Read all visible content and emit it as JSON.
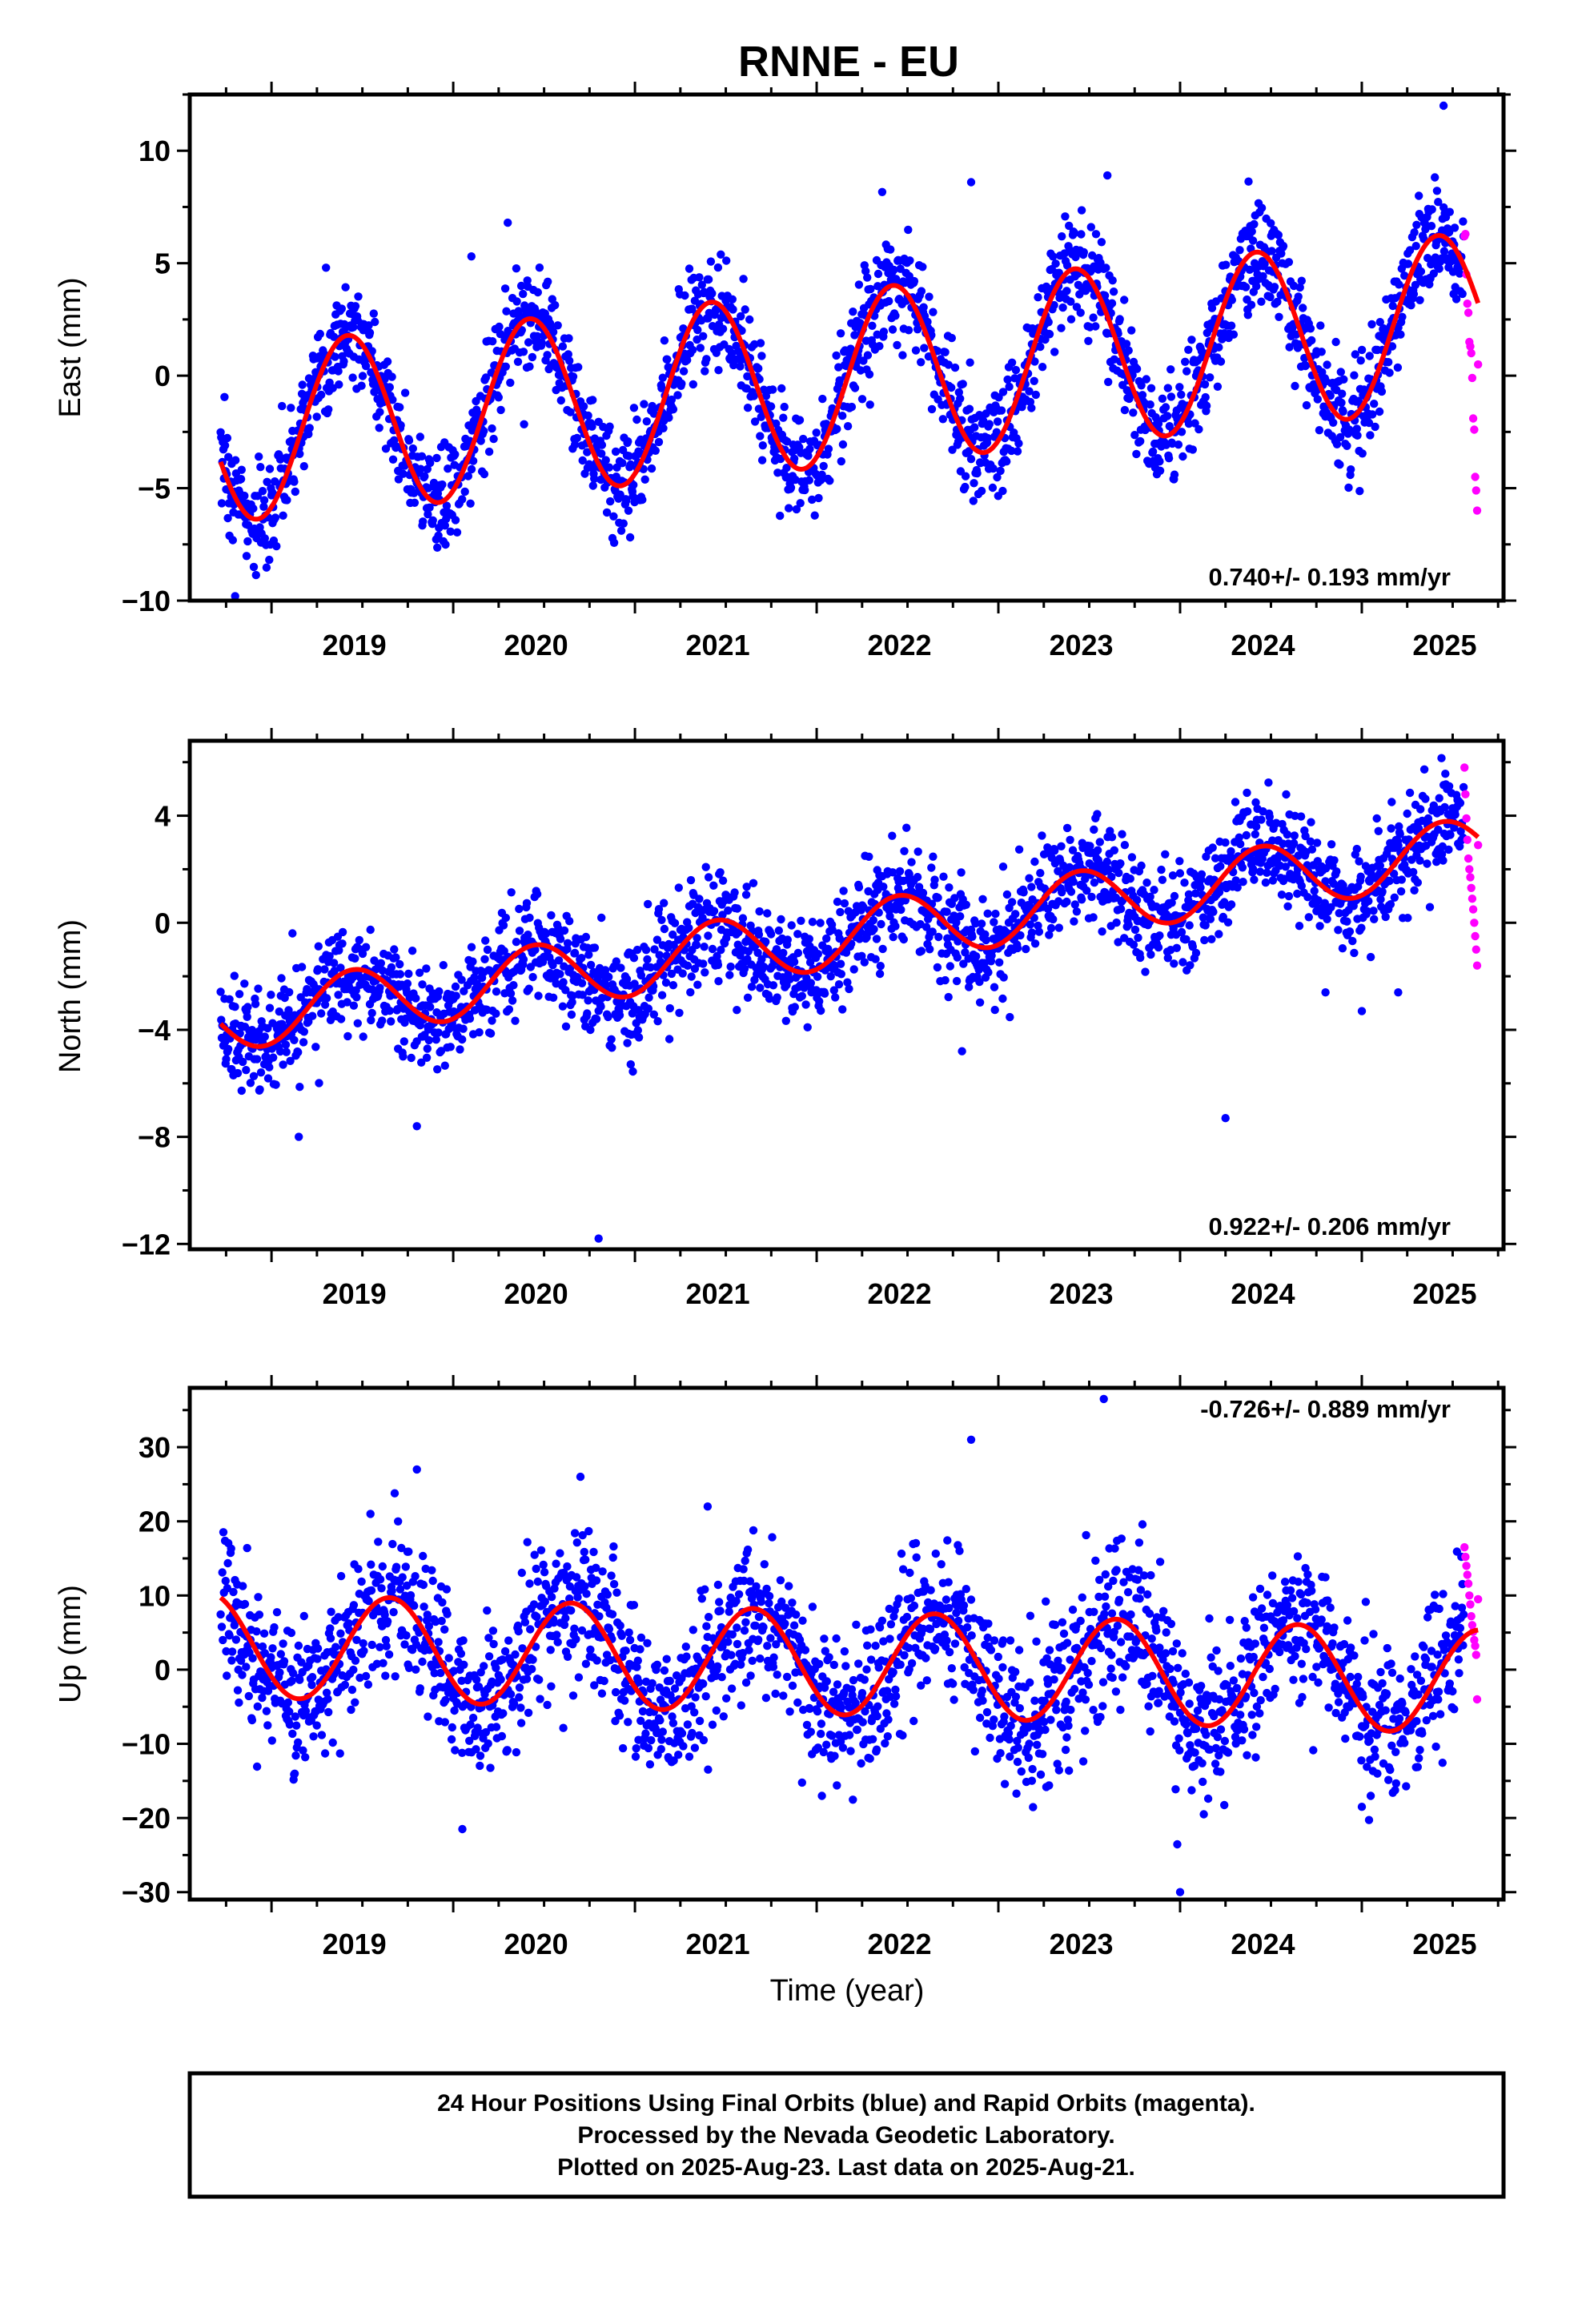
{
  "title": "RNNE - EU",
  "colors": {
    "final": "#0000ff",
    "rapid": "#ff00ff",
    "model": "#ff0000",
    "frame": "#000000"
  },
  "chart_data": [
    {
      "type": "scatter",
      "panel": "east",
      "ylabel": "East (mm)",
      "xlabel": "",
      "xlim": [
        2018.55,
        2025.78
      ],
      "ylim": [
        -10,
        12.5
      ],
      "yticks": [
        -10,
        -5,
        0,
        5,
        10
      ],
      "xticks": [
        2019,
        2020,
        2021,
        2022,
        2023,
        2024,
        2025
      ],
      "xtick_labels": [
        "2019",
        "2020",
        "2021",
        "2022",
        "2023",
        "2024",
        "2025"
      ],
      "rate_label": "0.740+/- 0.193 mm/yr",
      "rate_position": "bottom-right",
      "series": [
        {
          "name": "Final Orbits",
          "color": "#0000ff",
          "x_start": 2018.72,
          "x_end": 2025.56,
          "count": 2250,
          "scatter_sd": 1.2,
          "points_note": "daily solutions"
        },
        {
          "name": "Rapid Orbits",
          "color": "#ff00ff",
          "x_start": 2025.565,
          "x_end": 2025.64,
          "count": 15,
          "values": [
            6.2,
            6.3,
            4.5,
            3.2,
            2.8,
            1.5,
            1.3,
            1.0,
            -0.1,
            -1.9,
            -2.4,
            -4.5,
            -5.1,
            -6.0,
            0.5
          ]
        }
      ],
      "model": {
        "name": "Model fit",
        "color": "#ff0000",
        "ref_year": 2022.0,
        "intercept": -0.2,
        "trend": 0.74,
        "annual_amp": 3.9,
        "annual_peak": 0.42,
        "curve_x_start": 2018.72,
        "curve_x_end": 2025.64
      },
      "outliers": [
        [
          2025.45,
          12.0
        ],
        [
          2022.85,
          8.6
        ],
        [
          2023.6,
          8.9
        ],
        [
          2020.3,
          6.8
        ],
        [
          2019.3,
          4.8
        ],
        [
          2020.1,
          5.3
        ],
        [
          2018.8,
          -9.8
        ]
      ]
    },
    {
      "type": "scatter",
      "panel": "north",
      "ylabel": "North (mm)",
      "xlabel": "",
      "xlim": [
        2018.55,
        2025.78
      ],
      "ylim": [
        -12.2,
        6.8
      ],
      "yticks": [
        -12,
        -8,
        -4,
        0,
        4
      ],
      "xticks": [
        2019,
        2020,
        2021,
        2022,
        2023,
        2024,
        2025
      ],
      "xtick_labels": [
        "2019",
        "2020",
        "2021",
        "2022",
        "2023",
        "2024",
        "2025"
      ],
      "rate_label": "0.922+/- 0.206 mm/yr",
      "rate_position": "bottom-right",
      "series": [
        {
          "name": "Final Orbits",
          "color": "#0000ff",
          "x_start": 2018.72,
          "x_end": 2025.56,
          "count": 2250,
          "scatter_sd": 1.0
        },
        {
          "name": "Rapid Orbits",
          "color": "#ff00ff",
          "x_start": 2025.565,
          "x_end": 2025.64,
          "count": 15,
          "values": [
            5.8,
            4.8,
            3.9,
            3.1,
            2.4,
            2.0,
            1.7,
            1.3,
            0.9,
            0.5,
            0.0,
            -0.5,
            -1.0,
            -1.6,
            2.9
          ]
        }
      ],
      "model": {
        "name": "Model fit",
        "color": "#ff0000",
        "ref_year": 2022.0,
        "intercept": -0.6,
        "trend": 0.922,
        "annual_amp": 1.2,
        "annual_peak": 0.45,
        "curve_x_start": 2018.72,
        "curve_x_end": 2025.64
      },
      "outliers": [
        [
          2020.8,
          -11.8
        ],
        [
          2024.25,
          -7.3
        ],
        [
          2019.8,
          -7.6
        ],
        [
          2019.15,
          -8.0
        ],
        [
          2024.8,
          -2.6
        ],
        [
          2025.0,
          -3.3
        ],
        [
          2022.8,
          -4.8
        ],
        [
          2025.2,
          -2.6
        ]
      ]
    },
    {
      "type": "scatter",
      "panel": "up",
      "ylabel": "Up (mm)",
      "xlabel": "Time (year)",
      "xlim": [
        2018.55,
        2025.78
      ],
      "ylim": [
        -31,
        38
      ],
      "yticks": [
        -30,
        -20,
        -10,
        0,
        10,
        20,
        30
      ],
      "xticks": [
        2019,
        2020,
        2021,
        2022,
        2023,
        2024,
        2025
      ],
      "xtick_labels": [
        "2019",
        "2020",
        "2021",
        "2022",
        "2023",
        "2024",
        "2025"
      ],
      "rate_label": "-0.726+/- 0.889 mm/yr",
      "rate_position": "top-right",
      "series": [
        {
          "name": "Final Orbits",
          "color": "#0000ff",
          "x_start": 2018.72,
          "x_end": 2025.56,
          "count": 2250,
          "scatter_sd": 5.0
        },
        {
          "name": "Rapid Orbits",
          "color": "#ff00ff",
          "x_start": 2025.565,
          "x_end": 2025.64,
          "count": 15,
          "values": [
            16.5,
            15.2,
            14.0,
            12.8,
            11.6,
            10.0,
            8.8,
            7.2,
            6.0,
            5.1,
            4.0,
            3.2,
            2.0,
            -4.0,
            9.5
          ]
        }
      ],
      "model": {
        "name": "Model fit",
        "color": "#ff0000",
        "ref_year": 2022.0,
        "intercept": 1.0,
        "trend": -0.726,
        "annual_amp": 7.0,
        "annual_peak": 0.65,
        "curve_x_start": 2018.72,
        "curve_x_end": 2025.64
      },
      "outliers": [
        [
          2023.58,
          36.5
        ],
        [
          2022.85,
          31.0
        ],
        [
          2019.8,
          27.0
        ],
        [
          2024.0,
          -30.0
        ],
        [
          2020.05,
          -21.5
        ],
        [
          2020.7,
          26.0
        ],
        [
          2021.4,
          22.0
        ],
        [
          2025.0,
          -18.5
        ]
      ]
    }
  ],
  "footer": {
    "line1": "24 Hour Positions Using Final Orbits (blue) and Rapid Orbits (magenta).",
    "line2": "Processed by the Nevada Geodetic Laboratory.",
    "line3": "Plotted on 2025-Aug-23. Last data on 2025-Aug-21."
  }
}
